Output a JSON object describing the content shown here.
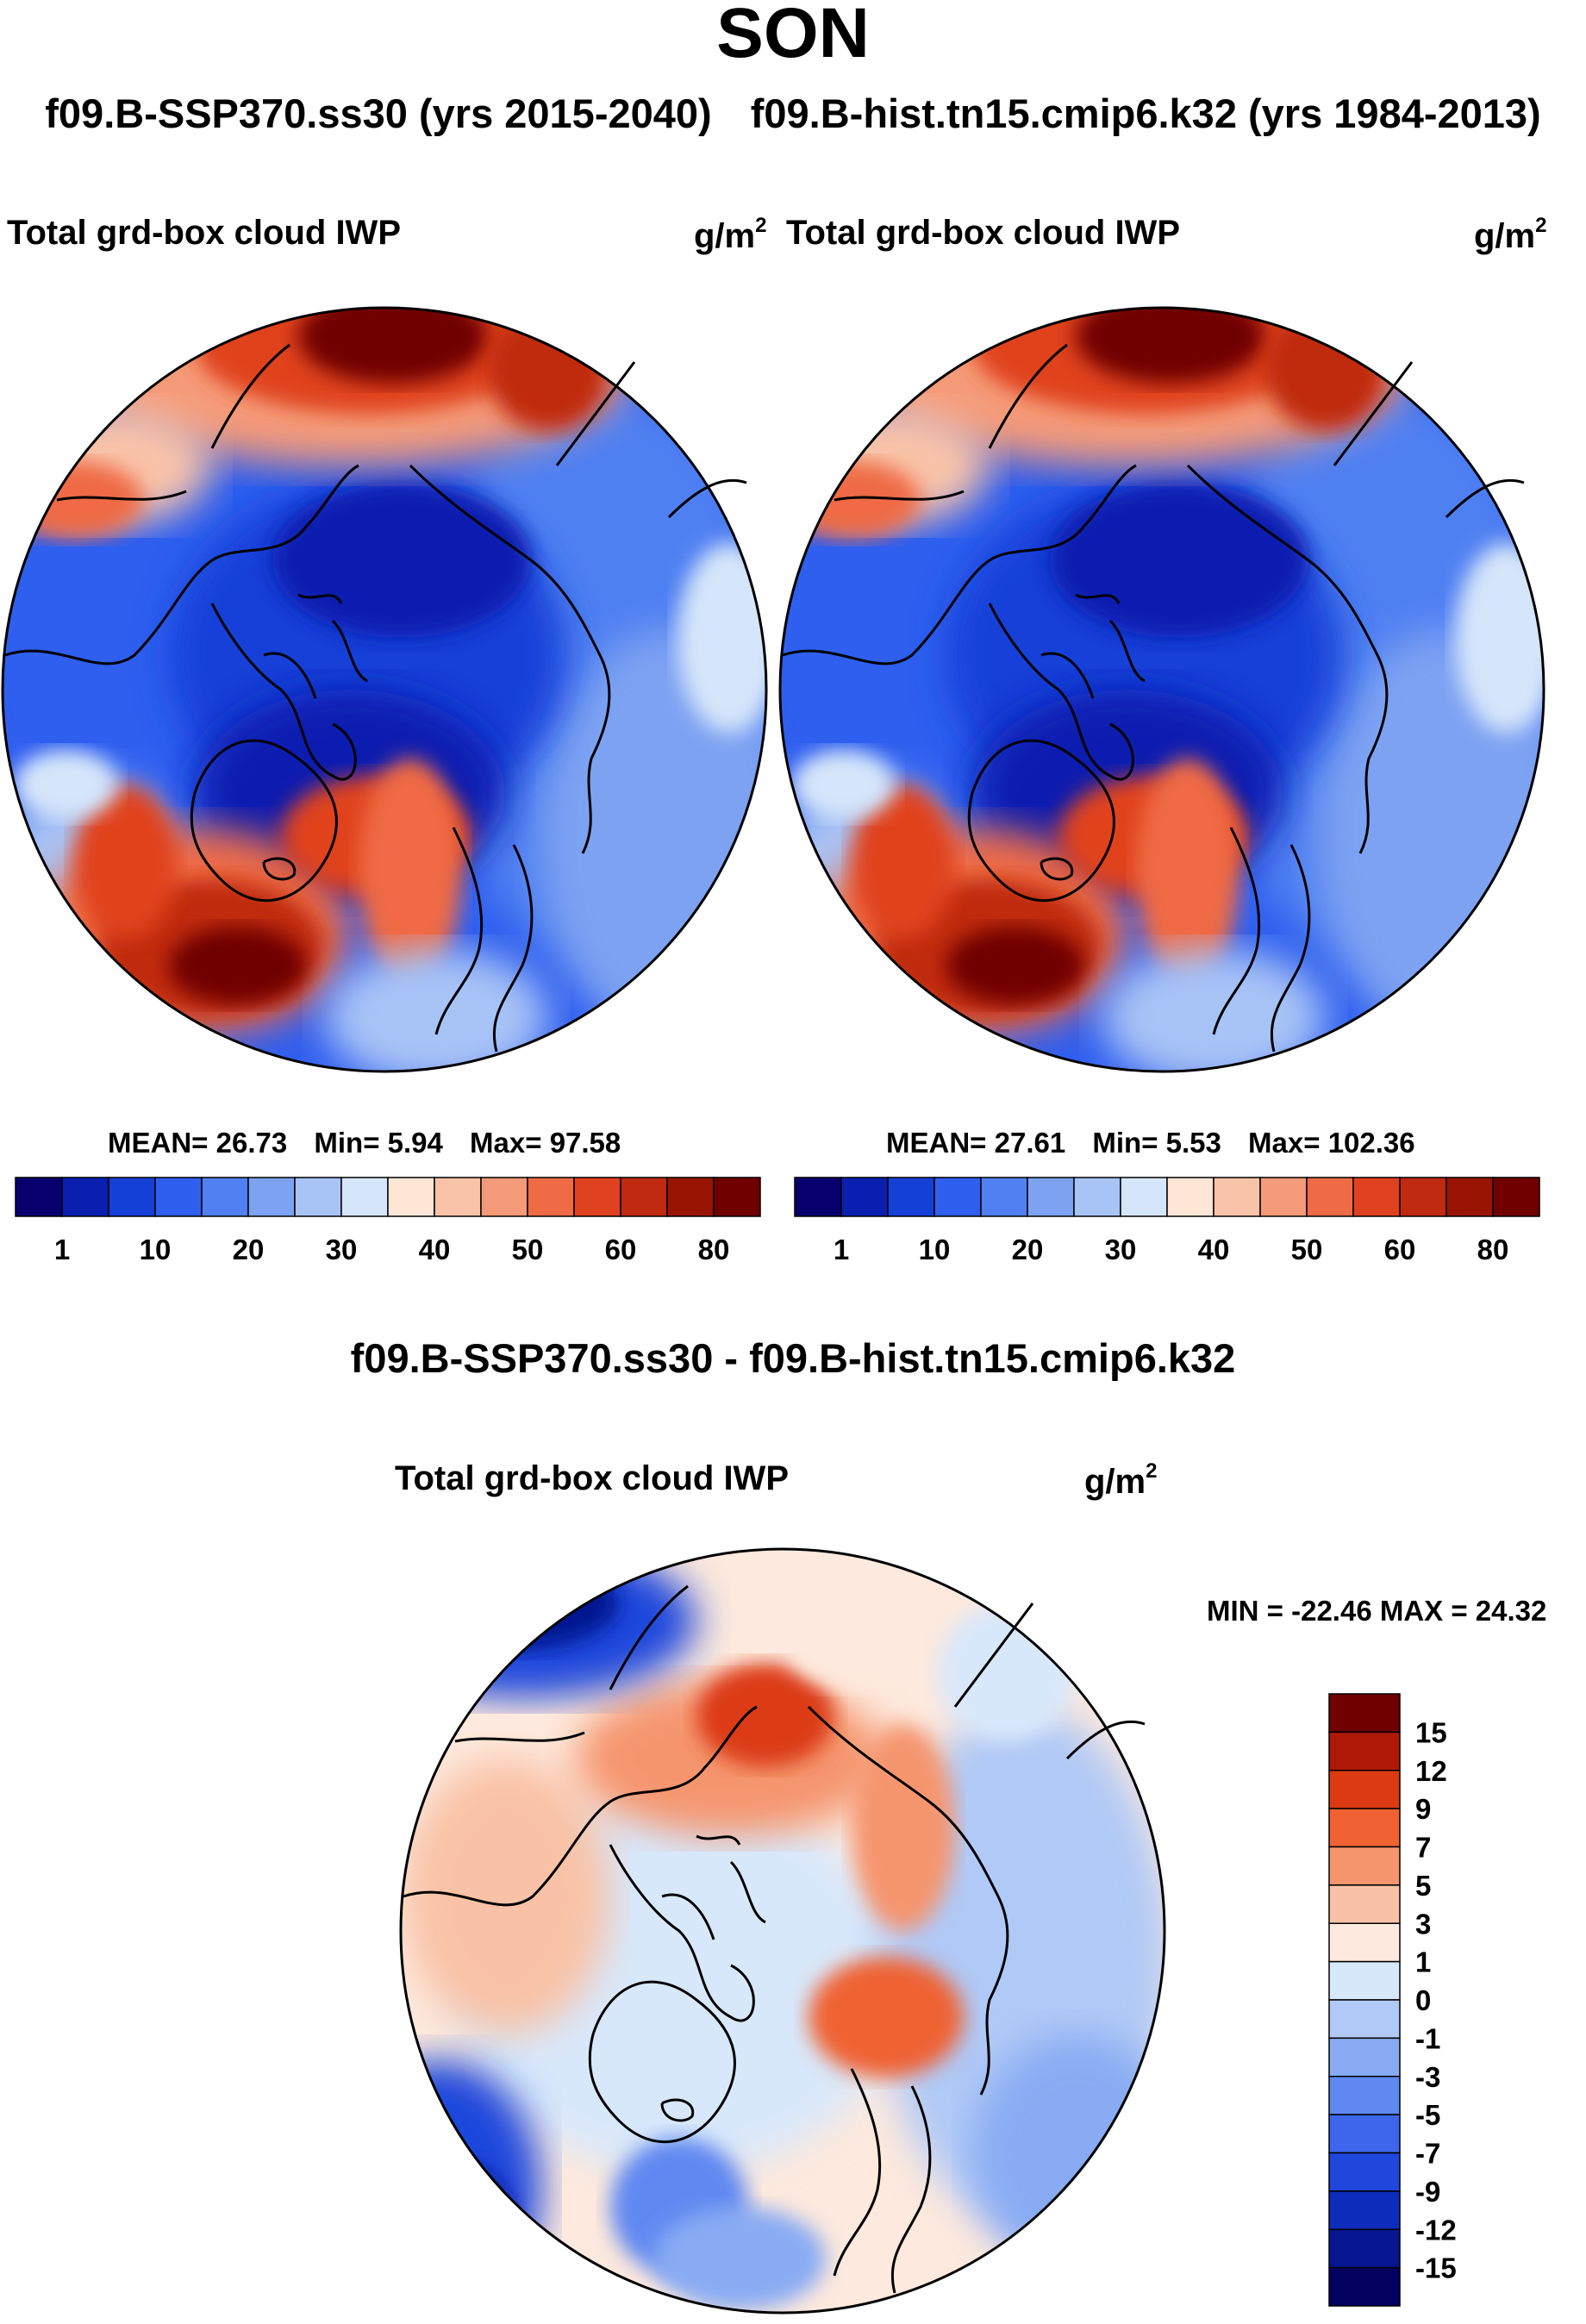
{
  "header": {
    "season": "SON",
    "case_test": "f09.B-SSP370.ss30 (yrs 2015-2040)",
    "case_control": "f09.B-hist.tn15.cmip6.k32 (yrs 1984-2013)"
  },
  "panel_left": {
    "title": "Total grd-box cloud IWP",
    "units": "g/m",
    "units_exp": "2",
    "stats": {
      "mean_label": "MEAN=",
      "mean": "26.73",
      "min_label": "Min=",
      "min": "5.94",
      "max_label": "Max=",
      "max": "97.58"
    }
  },
  "panel_right": {
    "title": "Total grd-box cloud IWP",
    "units": "g/m",
    "units_exp": "2",
    "stats": {
      "mean_label": "MEAN=",
      "mean": "27.61",
      "min_label": "Min=",
      "min": "5.53",
      "max_label": "Max=",
      "max": "102.36"
    }
  },
  "panel_diff": {
    "header": "f09.B-SSP370.ss30 - f09.B-hist.tn15.cmip6.k32",
    "title": "Total grd-box cloud IWP",
    "units": "g/m",
    "units_exp": "2",
    "minmax": "MIN = -22.46 MAX =  24.32"
  },
  "chart_data": [
    {
      "type": "heatmap",
      "projection": "north polar stereographic",
      "title": "Total grd-box cloud IWP",
      "units": "g/m^2",
      "season": "SON",
      "case": "f09.B-SSP370.ss30 (yrs 2015-2040)",
      "mean": 26.73,
      "min": 5.94,
      "max": 97.58,
      "colorbar": {
        "levels": [
          1,
          5,
          10,
          15,
          20,
          25,
          30,
          35,
          40,
          45,
          50,
          55,
          60,
          70,
          80
        ],
        "tick_labels": [
          "1",
          "10",
          "20",
          "30",
          "40",
          "50",
          "60",
          "80"
        ],
        "colors": [
          "#08006e",
          "#0a1fb0",
          "#1540d8",
          "#2f5fef",
          "#5080f2",
          "#7da2f2",
          "#a8c3f6",
          "#d6e6fa",
          "#fde6d6",
          "#f9c3a8",
          "#f59a78",
          "#ef6b45",
          "#e0421f",
          "#c02a10",
          "#9a1404",
          "#700000"
        ]
      }
    },
    {
      "type": "heatmap",
      "projection": "north polar stereographic",
      "title": "Total grd-box cloud IWP",
      "units": "g/m^2",
      "season": "SON",
      "case": "f09.B-hist.tn15.cmip6.k32 (yrs 1984-2013)",
      "mean": 27.61,
      "min": 5.53,
      "max": 102.36,
      "colorbar": {
        "levels": [
          1,
          5,
          10,
          15,
          20,
          25,
          30,
          35,
          40,
          45,
          50,
          55,
          60,
          70,
          80
        ],
        "tick_labels": [
          "1",
          "10",
          "20",
          "30",
          "40",
          "50",
          "60",
          "80"
        ],
        "colors": [
          "#08006e",
          "#0a1fb0",
          "#1540d8",
          "#2f5fef",
          "#5080f2",
          "#7da2f2",
          "#a8c3f6",
          "#d6e6fa",
          "#fde6d6",
          "#f9c3a8",
          "#f59a78",
          "#ef6b45",
          "#e0421f",
          "#c02a10",
          "#9a1404",
          "#700000"
        ]
      }
    },
    {
      "type": "heatmap",
      "projection": "north polar stereographic",
      "title": "Total grd-box cloud IWP",
      "subtitle": "f09.B-SSP370.ss30 - f09.B-hist.tn15.cmip6.k32",
      "units": "g/m^2",
      "min": -22.46,
      "max": 24.32,
      "colorbar": {
        "levels": [
          -15,
          -12,
          -9,
          -7,
          -5,
          -3,
          -1,
          0,
          1,
          3,
          5,
          7,
          9,
          12,
          15
        ],
        "tick_labels": [
          "15",
          "12",
          "9",
          "7",
          "5",
          "3",
          "1",
          "0",
          "-1",
          "-3",
          "-5",
          "-7",
          "-9",
          "-12",
          "-15"
        ],
        "colors": [
          "#700000",
          "#b01806",
          "#dc3a12",
          "#f06233",
          "#f5956e",
          "#f9c2a6",
          "#fde9dd",
          "#d8e8fb",
          "#b0c9f6",
          "#88abf3",
          "#5f88f1",
          "#3d66ec",
          "#1f47dc",
          "#0e2cbb",
          "#061690",
          "#040060"
        ]
      }
    }
  ]
}
